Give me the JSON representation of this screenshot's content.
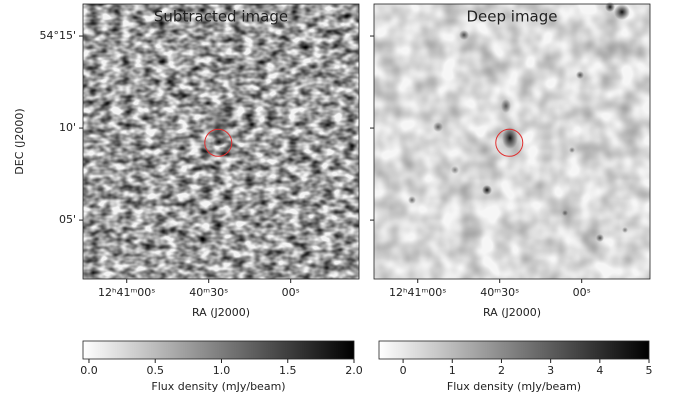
{
  "chart_data": [
    {
      "type": "image",
      "title": "Subtracted image",
      "cmap": "gray_r",
      "xlabel": "RA (J2000)",
      "ylabel": "DEC (J2000)",
      "xlim": [
        76,
        -25
      ],
      "xticks": [
        {
          "value": 60,
          "label": "12ʰ41ᵐ00ˢ"
        },
        {
          "value": 30,
          "label": "40ᵐ30ˢ"
        },
        {
          "value": 0,
          "label": "00ˢ"
        }
      ],
      "ylim": [
        1.8,
        16.74
      ],
      "yticks": [
        {
          "value": 15,
          "label": "54°15'"
        },
        {
          "value": 10,
          "label": "10'"
        },
        {
          "value": 5,
          "label": "05'"
        }
      ],
      "annotations": [
        {
          "x": 26.5,
          "y": 9.2,
          "color": "#e03030"
        }
      ],
      "colorbar": {
        "label": "Flux density (mJy/beam)",
        "clim": [
          -0.045,
          2.0
        ],
        "ticks": [
          {
            "value": 0,
            "label": "0.0"
          },
          0.5,
          {
            "value": 1,
            "label": "1.0"
          },
          1.5,
          {
            "value": 2,
            "label": "2.0"
          }
        ]
      }
    },
    {
      "type": "image",
      "title": "Deep image",
      "cmap": "gray_r",
      "xlabel": "RA (J2000)",
      "xlim": [
        76,
        -25
      ],
      "xticks": [
        {
          "value": 60,
          "label": "12ʰ41ᵐ00ˢ"
        },
        {
          "value": 30,
          "label": "40ᵐ30ˢ"
        },
        {
          "value": 0,
          "label": "00ˢ"
        }
      ],
      "ylim": [
        1.8,
        16.74
      ],
      "yticks": [
        15,
        10,
        5
      ],
      "ytick_labels": false,
      "annotations": [
        {
          "x": 26.5,
          "y": 9.2,
          "color": "#e03030"
        }
      ],
      "colorbar": {
        "label": "Flux density (mJy/beam)",
        "clim": [
          -0.49,
          5
        ],
        "ticks": [
          0,
          1,
          2,
          3,
          4,
          5
        ]
      }
    }
  ]
}
